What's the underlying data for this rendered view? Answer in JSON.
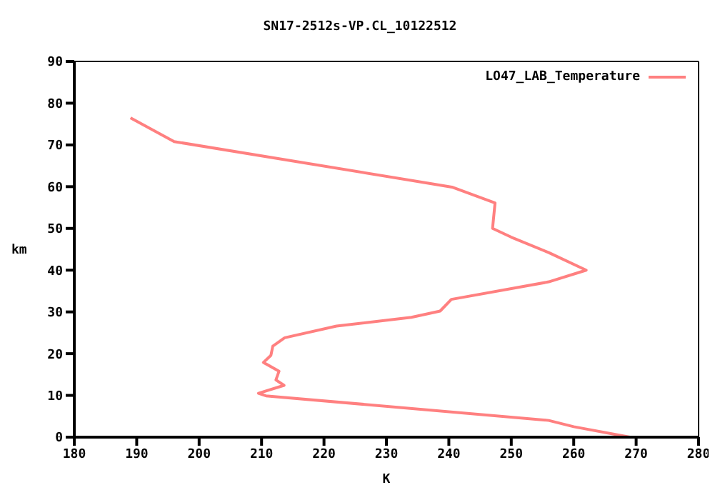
{
  "chart_data": {
    "type": "line",
    "title": "SN17-2512s-VP.CL_10122512",
    "xlabel": "K",
    "ylabel": "km",
    "xlim": [
      180,
      280
    ],
    "xticks": [
      180,
      190,
      200,
      210,
      220,
      230,
      240,
      250,
      260,
      270,
      280
    ],
    "ylim": [
      0,
      90
    ],
    "yticks": [
      0,
      10,
      20,
      30,
      40,
      50,
      60,
      70,
      80,
      90
    ],
    "grid": false,
    "legend": "top right",
    "marker": "none",
    "line_style": "solid",
    "series": [
      {
        "name": "LO47_LAB_Temperature",
        "color": "#ff8080",
        "x": [
          189,
          196,
          240.5,
          247.4,
          247,
          250,
          256,
          262,
          256,
          240.4,
          238.6,
          234,
          222,
          213.7,
          211.8,
          211.5,
          210.3,
          212.8,
          212.3,
          213.6,
          209.5,
          210.7,
          256,
          260,
          269
        ],
        "values": [
          76.5,
          70.8,
          59.9,
          56.1,
          50,
          47.9,
          44.2,
          40,
          37.2,
          33,
          30.2,
          28.7,
          26.6,
          23.8,
          21.8,
          19.6,
          17.9,
          15.8,
          13.7,
          12.4,
          10.5,
          9.9,
          4,
          2.5,
          0
        ]
      }
    ]
  }
}
